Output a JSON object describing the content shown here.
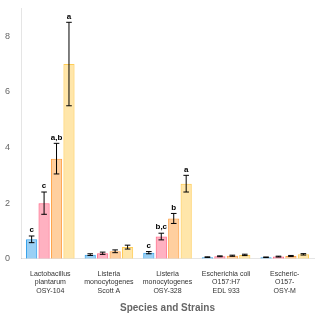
{
  "chart_data": {
    "type": "bar",
    "xlabel": "Species and Strains",
    "categories": [
      [
        "Lactobacillus",
        "plantarum",
        "OSY-104"
      ],
      [
        "Listeria",
        "monocytogenes",
        "Scott A"
      ],
      [
        "Listeria",
        "monocytogenes",
        "OSY-328"
      ],
      [
        "Escherichia coli",
        "O157:H7",
        "EDL 933"
      ],
      [
        "Escheric-",
        "O157-",
        "OSY-M"
      ]
    ],
    "series": [
      {
        "values": [
          0.7,
          0.15,
          0.22,
          0.06,
          0.055
        ],
        "errors": [
          0.12,
          0.03,
          0.04,
          0.01,
          0.01
        ]
      },
      {
        "values": [
          2.0,
          0.2,
          0.8,
          0.09,
          0.08
        ],
        "errors": [
          0.4,
          0.04,
          0.12,
          0.015,
          0.015
        ]
      },
      {
        "values": [
          3.6,
          0.27,
          1.45,
          0.11,
          0.1
        ],
        "errors": [
          0.55,
          0.05,
          0.18,
          0.02,
          0.02
        ]
      },
      {
        "values": [
          7.0,
          0.42,
          2.7,
          0.14,
          0.16
        ],
        "errors": [
          1.5,
          0.07,
          0.3,
          0.025,
          0.025
        ]
      }
    ],
    "annotations": [
      {
        "text": "c",
        "category": 0,
        "series": 0
      },
      {
        "text": "c",
        "category": 0,
        "series": 1
      },
      {
        "text": "a,b",
        "category": 0,
        "series": 2
      },
      {
        "text": "a",
        "category": 0,
        "series": 3
      },
      {
        "text": "c",
        "category": 2,
        "series": 0
      },
      {
        "text": "b,c",
        "category": 2,
        "series": 1
      },
      {
        "text": "b",
        "category": 2,
        "series": 2
      },
      {
        "text": "a",
        "category": 2,
        "series": 3
      }
    ],
    "ylim": [
      0,
      9.0
    ],
    "yticks": [
      0,
      2,
      4,
      6,
      8
    ],
    "grid": false,
    "tick_labels": true
  }
}
